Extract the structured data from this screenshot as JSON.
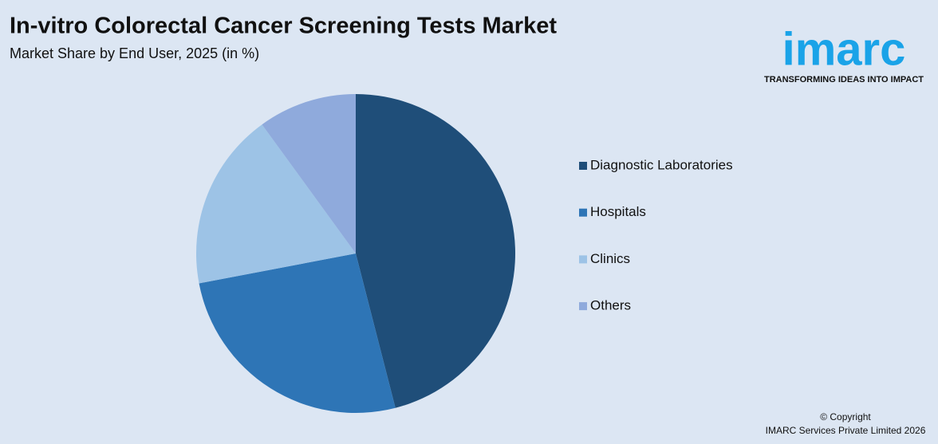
{
  "chart_data": {
    "type": "pie",
    "title": "In-vitro Colorectal Cancer Screening Tests Market",
    "subtitle": "Market Share by End User, 2025 (in %)",
    "categories": [
      "Diagnostic Laboratories",
      "Hospitals",
      "Clinics",
      "Others"
    ],
    "values": [
      46,
      26,
      18,
      10
    ],
    "colors": [
      "#1f4e79",
      "#2e75b6",
      "#9dc3e6",
      "#8faadc"
    ],
    "legend": "right"
  },
  "brand": {
    "logo": "imarc",
    "tagline": "TRANSFORMING IDEAS INTO IMPACT"
  },
  "footer": {
    "copyright": "© Copyright",
    "company": "IMARC Services Private Limited 2026"
  }
}
